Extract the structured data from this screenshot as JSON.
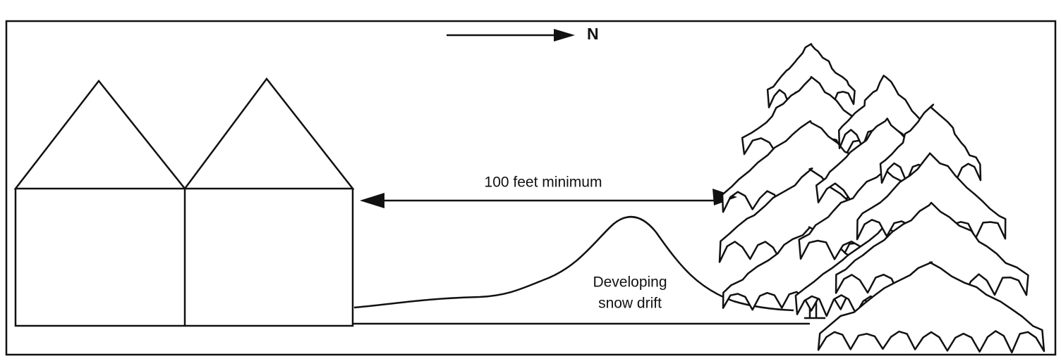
{
  "compass": {
    "label": "N"
  },
  "distance": {
    "label": "100 feet minimum"
  },
  "snow_drift": {
    "label_lines": [
      "Developing",
      "snow drift"
    ]
  }
}
